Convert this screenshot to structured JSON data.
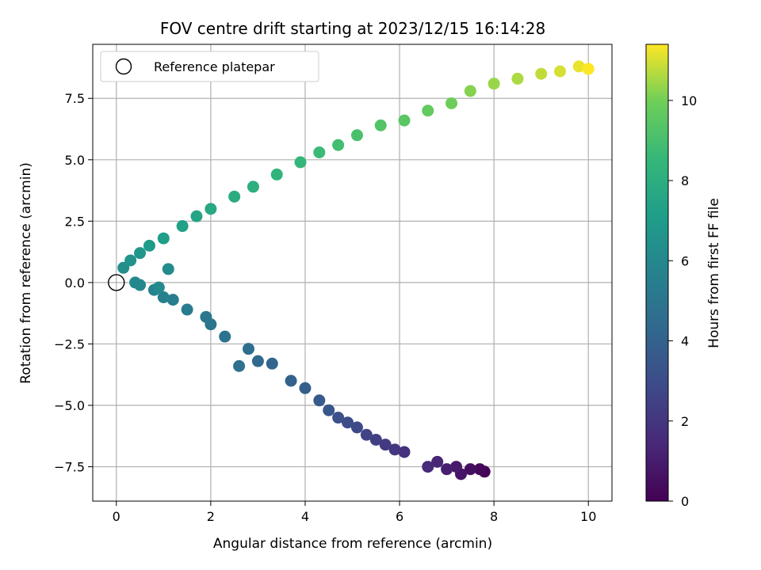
{
  "chart_data": {
    "type": "scatter",
    "title": "FOV centre drift starting at 2023/12/15 16:14:28",
    "xlabel": "Angular distance from reference (arcmin)",
    "ylabel": "Rotation from reference (arcmin)",
    "xlim": [
      -0.5,
      10.5
    ],
    "ylim": [
      -8.9,
      9.7
    ],
    "xticks": [
      0,
      2,
      4,
      6,
      8,
      10
    ],
    "xtick_labels": [
      "0",
      "2",
      "4",
      "6",
      "8",
      "10"
    ],
    "yticks": [
      -7.5,
      -5.0,
      -2.5,
      0.0,
      2.5,
      5.0,
      7.5
    ],
    "ytick_labels": [
      "−7.5",
      "−5.0",
      "−2.5",
      "0.0",
      "2.5",
      "5.0",
      "7.5"
    ],
    "grid": true,
    "legend": {
      "placement": "upper-left",
      "entries": [
        "Reference platepar"
      ]
    },
    "colorbar": {
      "label": "Hours from first FF file",
      "colormap": "viridis",
      "range": [
        0,
        11.4
      ],
      "ticks": [
        0,
        2,
        4,
        6,
        8,
        10
      ],
      "tick_labels": [
        "0",
        "2",
        "4",
        "6",
        "8",
        "10"
      ]
    },
    "reference_point": {
      "x": 0,
      "y": 0
    },
    "series": [
      {
        "values": [
          {
            "x": 7.8,
            "y": -7.7,
            "c": 0.1
          },
          {
            "x": 7.7,
            "y": -7.6,
            "c": 0.3
          },
          {
            "x": 7.5,
            "y": -7.6,
            "c": 0.5
          },
          {
            "x": 7.3,
            "y": -7.8,
            "c": 0.7
          },
          {
            "x": 7.2,
            "y": -7.5,
            "c": 0.9
          },
          {
            "x": 7.0,
            "y": -7.6,
            "c": 1.1
          },
          {
            "x": 6.8,
            "y": -7.3,
            "c": 1.3
          },
          {
            "x": 6.6,
            "y": -7.5,
            "c": 1.5
          },
          {
            "x": 6.1,
            "y": -6.9,
            "c": 1.8
          },
          {
            "x": 5.9,
            "y": -6.8,
            "c": 2.0
          },
          {
            "x": 5.7,
            "y": -6.6,
            "c": 2.2
          },
          {
            "x": 5.5,
            "y": -6.4,
            "c": 2.4
          },
          {
            "x": 5.3,
            "y": -6.2,
            "c": 2.6
          },
          {
            "x": 5.1,
            "y": -5.9,
            "c": 2.8
          },
          {
            "x": 4.9,
            "y": -5.7,
            "c": 3.0
          },
          {
            "x": 4.7,
            "y": -5.5,
            "c": 3.2
          },
          {
            "x": 4.5,
            "y": -5.2,
            "c": 3.4
          },
          {
            "x": 4.3,
            "y": -4.8,
            "c": 3.6
          },
          {
            "x": 4.0,
            "y": -4.3,
            "c": 3.8
          },
          {
            "x": 3.7,
            "y": -4.0,
            "c": 4.0
          },
          {
            "x": 3.3,
            "y": -3.3,
            "c": 4.2
          },
          {
            "x": 3.0,
            "y": -3.2,
            "c": 4.4
          },
          {
            "x": 2.8,
            "y": -2.7,
            "c": 4.6
          },
          {
            "x": 2.6,
            "y": -3.4,
            "c": 4.7
          },
          {
            "x": 2.3,
            "y": -2.2,
            "c": 4.8
          },
          {
            "x": 2.0,
            "y": -1.7,
            "c": 5.0
          },
          {
            "x": 1.9,
            "y": -1.4,
            "c": 5.1
          },
          {
            "x": 1.5,
            "y": -1.1,
            "c": 5.3
          },
          {
            "x": 1.2,
            "y": -0.7,
            "c": 5.5
          },
          {
            "x": 1.0,
            "y": -0.6,
            "c": 5.6
          },
          {
            "x": 0.8,
            "y": -0.3,
            "c": 5.8
          },
          {
            "x": 0.5,
            "y": -0.1,
            "c": 5.9
          },
          {
            "x": 0.4,
            "y": 0.0,
            "c": 6.0
          },
          {
            "x": 0.9,
            "y": -0.2,
            "c": 6.1
          },
          {
            "x": 1.1,
            "y": 0.55,
            "c": 6.2
          },
          {
            "x": 0.15,
            "y": 0.6,
            "c": 6.3
          },
          {
            "x": 0.3,
            "y": 0.9,
            "c": 6.5
          },
          {
            "x": 0.5,
            "y": 1.2,
            "c": 6.7
          },
          {
            "x": 0.7,
            "y": 1.5,
            "c": 6.9
          },
          {
            "x": 1.0,
            "y": 1.8,
            "c": 7.1
          },
          {
            "x": 1.4,
            "y": 2.3,
            "c": 7.3
          },
          {
            "x": 1.7,
            "y": 2.7,
            "c": 7.5
          },
          {
            "x": 2.0,
            "y": 3.0,
            "c": 7.7
          },
          {
            "x": 2.5,
            "y": 3.5,
            "c": 7.9
          },
          {
            "x": 2.9,
            "y": 3.9,
            "c": 8.1
          },
          {
            "x": 3.4,
            "y": 4.4,
            "c": 8.3
          },
          {
            "x": 3.9,
            "y": 4.9,
            "c": 8.5
          },
          {
            "x": 4.3,
            "y": 5.3,
            "c": 8.7
          },
          {
            "x": 4.7,
            "y": 5.6,
            "c": 8.9
          },
          {
            "x": 5.1,
            "y": 6.0,
            "c": 9.1
          },
          {
            "x": 5.6,
            "y": 6.4,
            "c": 9.3
          },
          {
            "x": 6.1,
            "y": 6.6,
            "c": 9.5
          },
          {
            "x": 6.6,
            "y": 7.0,
            "c": 9.7
          },
          {
            "x": 7.1,
            "y": 7.3,
            "c": 9.9
          },
          {
            "x": 7.5,
            "y": 7.8,
            "c": 10.2
          },
          {
            "x": 8.0,
            "y": 8.1,
            "c": 10.4
          },
          {
            "x": 8.5,
            "y": 8.3,
            "c": 10.6
          },
          {
            "x": 9.0,
            "y": 8.5,
            "c": 10.8
          },
          {
            "x": 9.4,
            "y": 8.6,
            "c": 11.0
          },
          {
            "x": 9.8,
            "y": 8.8,
            "c": 11.2
          },
          {
            "x": 10.0,
            "y": 8.7,
            "c": 11.4
          }
        ]
      }
    ]
  }
}
